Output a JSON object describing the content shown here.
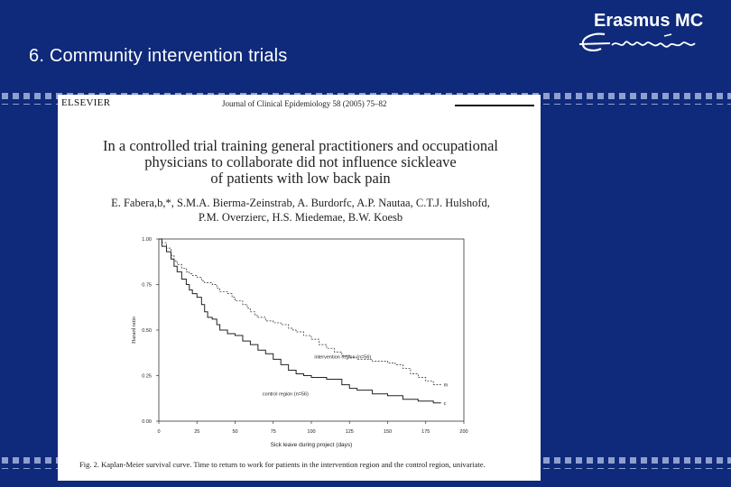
{
  "slide": {
    "title": "6. Community intervention trials",
    "logo_text": "Erasmus MC",
    "logo_mark_icon": "erasmus-signature-icon"
  },
  "paper": {
    "publisher": "ELSEVIER",
    "journal": "Journal of Clinical Epidemiology 58 (2005) 75–82",
    "title_lines": [
      "In a controlled trial training general practitioners and occupational",
      "physicians to collaborate did not influence sickleave",
      "of patients with low back pain"
    ],
    "author_lines": [
      "E. Fabera,b,*, S.M.A. Bierma-Zeinstrab, A. Burdorfc, A.P. Nautaa, C.T.J. Hulshofd,",
      "P.M. Overzierc, H.S. Miedemae, B.W. Koesb"
    ],
    "caption": "Fig. 2. Kaplan-Meier survival curve. Time to return to work for patients in the intervention region and the control region, univariate."
  },
  "chart_data": {
    "type": "line",
    "xlabel": "Sick leave during project (days)",
    "ylabel": "Hazard ratio",
    "xlim": [
      0,
      200
    ],
    "ylim": [
      0,
      1
    ],
    "xticks": [
      "0",
      "25",
      "50",
      "75",
      "100",
      "125",
      "150",
      "175",
      "200"
    ],
    "yticks": [
      "0.00",
      "0.25",
      "0.50",
      "0.75",
      "1.00"
    ],
    "series": [
      {
        "name": "intervention region (n=56)",
        "style": "dashed",
        "end_marker": "m",
        "points": [
          [
            0,
            1.0
          ],
          [
            2,
            0.98
          ],
          [
            5,
            0.95
          ],
          [
            8,
            0.91
          ],
          [
            10,
            0.88
          ],
          [
            12,
            0.86
          ],
          [
            15,
            0.84
          ],
          [
            18,
            0.82
          ],
          [
            20,
            0.81
          ],
          [
            22,
            0.8
          ],
          [
            25,
            0.79
          ],
          [
            28,
            0.77
          ],
          [
            30,
            0.76
          ],
          [
            35,
            0.75
          ],
          [
            38,
            0.73
          ],
          [
            40,
            0.71
          ],
          [
            45,
            0.7
          ],
          [
            48,
            0.68
          ],
          [
            50,
            0.66
          ],
          [
            55,
            0.64
          ],
          [
            58,
            0.62
          ],
          [
            60,
            0.6
          ],
          [
            63,
            0.58
          ],
          [
            65,
            0.57
          ],
          [
            70,
            0.55
          ],
          [
            75,
            0.54
          ],
          [
            80,
            0.53
          ],
          [
            85,
            0.51
          ],
          [
            88,
            0.5
          ],
          [
            90,
            0.49
          ],
          [
            95,
            0.47
          ],
          [
            100,
            0.45
          ],
          [
            105,
            0.42
          ],
          [
            110,
            0.4
          ],
          [
            115,
            0.38
          ],
          [
            120,
            0.36
          ],
          [
            125,
            0.35
          ],
          [
            130,
            0.34
          ],
          [
            140,
            0.33
          ],
          [
            150,
            0.32
          ],
          [
            155,
            0.31
          ],
          [
            160,
            0.29
          ],
          [
            165,
            0.26
          ],
          [
            170,
            0.24
          ],
          [
            175,
            0.22
          ],
          [
            180,
            0.2
          ],
          [
            185,
            0.2
          ]
        ]
      },
      {
        "name": "control region (n=56)",
        "style": "solid",
        "end_marker": "c",
        "points": [
          [
            0,
            1.0
          ],
          [
            2,
            0.96
          ],
          [
            5,
            0.93
          ],
          [
            8,
            0.89
          ],
          [
            10,
            0.85
          ],
          [
            12,
            0.82
          ],
          [
            15,
            0.78
          ],
          [
            18,
            0.75
          ],
          [
            20,
            0.72
          ],
          [
            22,
            0.7
          ],
          [
            25,
            0.68
          ],
          [
            28,
            0.64
          ],
          [
            30,
            0.6
          ],
          [
            32,
            0.57
          ],
          [
            35,
            0.56
          ],
          [
            38,
            0.53
          ],
          [
            40,
            0.5
          ],
          [
            45,
            0.48
          ],
          [
            50,
            0.47
          ],
          [
            55,
            0.44
          ],
          [
            60,
            0.42
          ],
          [
            65,
            0.39
          ],
          [
            70,
            0.37
          ],
          [
            75,
            0.34
          ],
          [
            80,
            0.31
          ],
          [
            85,
            0.28
          ],
          [
            90,
            0.26
          ],
          [
            95,
            0.25
          ],
          [
            100,
            0.24
          ],
          [
            110,
            0.23
          ],
          [
            120,
            0.2
          ],
          [
            125,
            0.18
          ],
          [
            130,
            0.17
          ],
          [
            140,
            0.15
          ],
          [
            150,
            0.14
          ],
          [
            160,
            0.12
          ],
          [
            170,
            0.11
          ],
          [
            180,
            0.1
          ],
          [
            185,
            0.1
          ]
        ]
      }
    ]
  }
}
